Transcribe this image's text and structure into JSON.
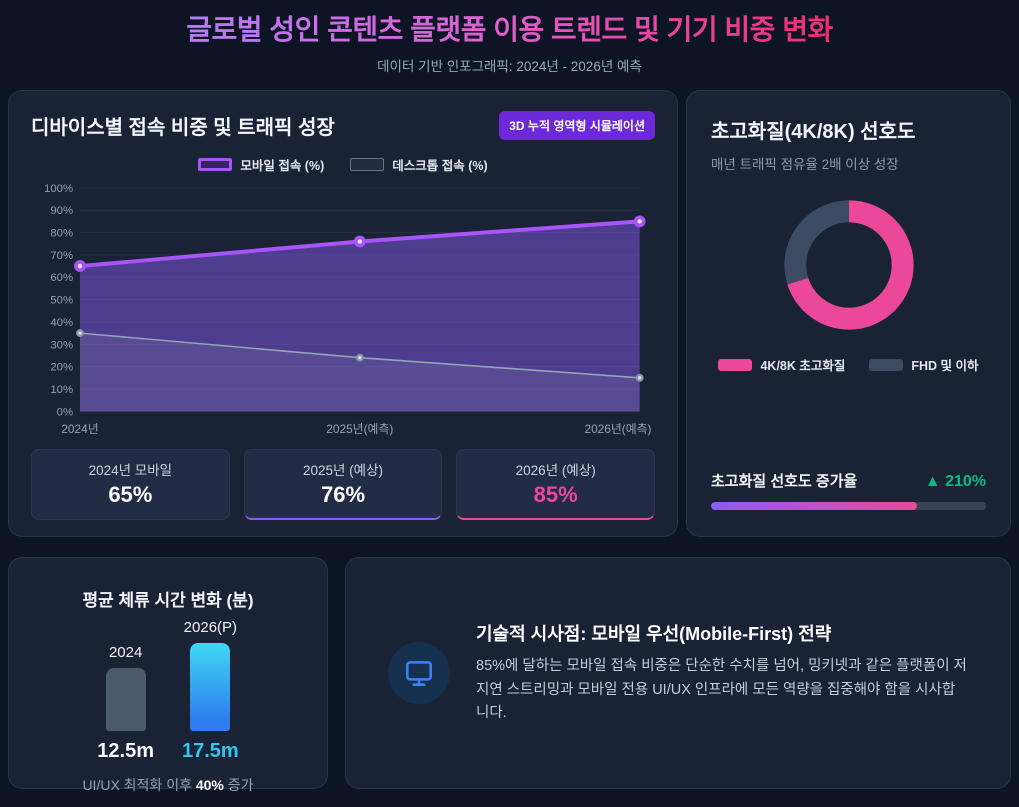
{
  "header": {
    "title": "글로벌 성인 콘텐츠 플랫폼 이용 트렌드 및 기기 비중 변화",
    "subtitle": "데이터 기반 인포그래픽: 2024년 - 2026년 예측"
  },
  "device_card": {
    "title": "디바이스별 접속 비중 및 트래픽 성장",
    "badge": "3D 누적 영역형 시뮬레이션",
    "stats": [
      {
        "label": "2024년 모바일",
        "value": "65%"
      },
      {
        "label": "2025년 (예상)",
        "value": "76%"
      },
      {
        "label": "2026년 (예상)",
        "value": "85%"
      }
    ]
  },
  "quality_card": {
    "title": "초고화질(4K/8K) 선호도",
    "subtitle": "매년 트래픽 점유율 2배 이상 성장",
    "growth_label": "초고화질 선호도 증가율",
    "growth_value": "▲ 210%",
    "growth_bar_pct": 75
  },
  "time_card": {
    "title": "평균 체류 시간 변화 (분)",
    "caption_prefix": "UI/UX 최적화 이후 ",
    "caption_bold": "40%",
    "caption_suffix": " 증가"
  },
  "insight_card": {
    "icon": "monitor-icon",
    "title": "기술적 시사점: 모바일 우선(Mobile-First) 전략",
    "body": "85%에 달하는 모바일 접속 비중은 단순한 수치를 넘어, 밍키넷과 같은 플랫폼이 저지연 스트리밍과 모바일 전용 UI/UX 인프라에 모든 역량을 집중해야 함을 시사합니다."
  },
  "colors": {
    "accent_purple": "#a855f7",
    "accent_pink": "#ec4899",
    "growth_green": "#10b981",
    "badge_purple": "#6d28d9",
    "bar_gray": "#4d5a6e",
    "bar_blue_top": "#3fd8f2",
    "bar_blue_bottom": "#2f7bf0"
  },
  "chart_data": [
    {
      "id": "device_trend",
      "type": "line",
      "title": "디바이스별 접속 비중 및 트래픽 성장",
      "x": [
        "2024년",
        "2025년(예측)",
        "2026년(예측)"
      ],
      "series": [
        {
          "name": "모바일 접속 (%)",
          "values": [
            65,
            76,
            85
          ],
          "color": "#a855f7",
          "area": true
        },
        {
          "name": "데스크톱 접속 (%)",
          "values": [
            35,
            24,
            15
          ],
          "color": "#94a3b8",
          "area": true
        }
      ],
      "ylim": [
        0,
        100
      ],
      "ytick_step": 10,
      "ytick_suffix": "%",
      "grid": true,
      "legend_position": "top"
    },
    {
      "id": "quality_donut",
      "type": "pie",
      "donut": true,
      "segments": [
        {
          "label": "4K/8K 초고화질",
          "value": 70,
          "color": "#ec4899"
        },
        {
          "label": "FHD 및 이하",
          "value": 30,
          "color": "#3e4c63"
        }
      ],
      "legend_position": "bottom"
    },
    {
      "id": "dwell_time_bars",
      "type": "bar",
      "title": "평균 체류 시간 변화 (분)",
      "categories": [
        "2024",
        "2026(P)"
      ],
      "values": [
        12.5,
        17.5
      ],
      "value_labels": [
        "12.5m",
        "17.5m"
      ],
      "colors": [
        "#4d5a6e",
        "gradient(#3fd8f2→#2f7bf0)"
      ],
      "ylabel": "분"
    }
  ]
}
